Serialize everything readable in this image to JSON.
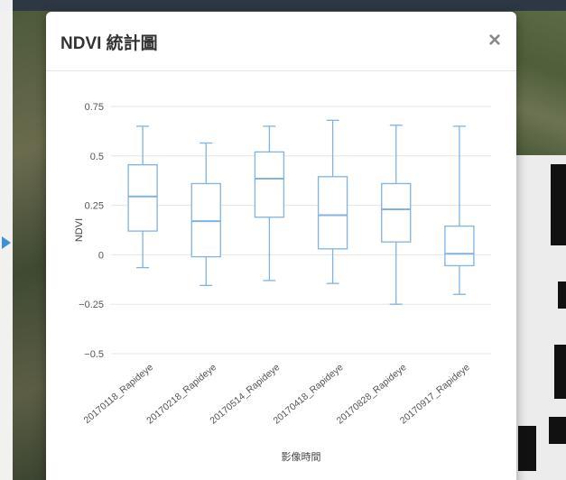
{
  "modal": {
    "title": "NDVI 統計圖",
    "close_label": "×"
  },
  "colors": {
    "box_stroke": "#7fb3e0",
    "grid": "#e6e6e6",
    "tick_text": "#555555",
    "accent_arrow": "#3d8fd6"
  },
  "chart_data": {
    "type": "boxplot",
    "title": "",
    "xlabel": "影像時間",
    "ylabel": "NDVI",
    "ylim": [
      -0.5,
      0.75
    ],
    "yticks": [
      0.75,
      0.5,
      0.25,
      0,
      -0.25,
      -0.5
    ],
    "ytick_labels": [
      "0.75",
      "0.5",
      "0.25",
      "0",
      "−0.25",
      "−0.5"
    ],
    "grid": true,
    "categories": [
      "20170118_Rapideye",
      "20170218_Rapideye",
      "20170514_Rapideye",
      "20170418_Rapideye",
      "20170828_Rapideye",
      "20170917_Rapideye"
    ],
    "boxes": [
      {
        "min": -0.065,
        "q1": 0.12,
        "median": 0.295,
        "q3": 0.455,
        "max": 0.65
      },
      {
        "min": -0.155,
        "q1": -0.01,
        "median": 0.17,
        "q3": 0.36,
        "max": 0.565
      },
      {
        "min": -0.13,
        "q1": 0.19,
        "median": 0.385,
        "q3": 0.52,
        "max": 0.65
      },
      {
        "min": -0.145,
        "q1": 0.03,
        "median": 0.2,
        "q3": 0.395,
        "max": 0.68
      },
      {
        "min": -0.25,
        "q1": 0.065,
        "median": 0.23,
        "q3": 0.36,
        "max": 0.655
      },
      {
        "min": -0.2,
        "q1": -0.055,
        "median": 0.005,
        "q3": 0.145,
        "max": 0.65
      }
    ]
  }
}
